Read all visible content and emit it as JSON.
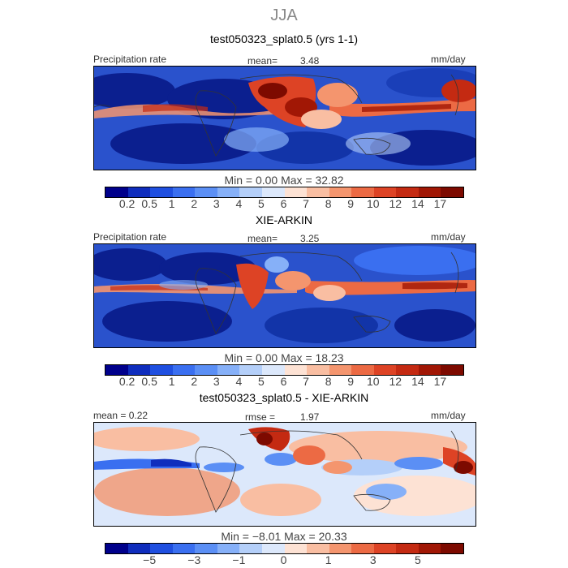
{
  "season": "JJA",
  "panels": [
    {
      "title": "test050323_splat0.5 (yrs 1-1)",
      "left_label": "Precipitation rate",
      "mid_label": "mean=",
      "mid_value": "3.48",
      "right_label": "mm/day",
      "stats": "Min =    0.00 Max =  32.82"
    },
    {
      "title": "XIE-ARKIN",
      "left_label": "Precipitation rate",
      "mid_label": "mean=",
      "mid_value": "3.25",
      "right_label": "mm/day",
      "stats": "Min =    0.00 Max =  18.23"
    },
    {
      "title": "test050323_splat0.5 - XIE-ARKIN",
      "left_label": "mean =   0.22",
      "mid_label": "rmse =",
      "mid_value": "1.97",
      "right_label": "mm/day",
      "stats": "Min =  −8.01 Max =  20.33"
    }
  ],
  "colorbar_precip": {
    "colors": [
      "#00008b",
      "#0f2dbd",
      "#1f4fe0",
      "#3a6ff0",
      "#5b8ff5",
      "#86b0f8",
      "#b4cff9",
      "#dce8fb",
      "#fde2d4",
      "#f9bea2",
      "#f4956e",
      "#ec6a44",
      "#dd4325",
      "#c42a12",
      "#a11705",
      "#7d0a00"
    ],
    "ticks": [
      {
        "label": "0.2",
        "pos": 1
      },
      {
        "label": "0.5",
        "pos": 2
      },
      {
        "label": "1",
        "pos": 3
      },
      {
        "label": "2",
        "pos": 4
      },
      {
        "label": "3",
        "pos": 5
      },
      {
        "label": "4",
        "pos": 6
      },
      {
        "label": "5",
        "pos": 7
      },
      {
        "label": "6",
        "pos": 8
      },
      {
        "label": "7",
        "pos": 9
      },
      {
        "label": "8",
        "pos": 10
      },
      {
        "label": "9",
        "pos": 11
      },
      {
        "label": "10",
        "pos": 12
      },
      {
        "label": "12",
        "pos": 13
      },
      {
        "label": "14",
        "pos": 14
      },
      {
        "label": "17",
        "pos": 15
      }
    ]
  },
  "colorbar_diff": {
    "colors": [
      "#00008b",
      "#0f2dbd",
      "#1f4fe0",
      "#3a6ff0",
      "#5b8ff5",
      "#86b0f8",
      "#b4cff9",
      "#dce8fb",
      "#fde2d4",
      "#f9bea2",
      "#f4956e",
      "#ec6a44",
      "#dd4325",
      "#c42a12",
      "#a11705",
      "#7d0a00"
    ],
    "ticks": [
      {
        "label": "−5",
        "pos": 2
      },
      {
        "label": "−3",
        "pos": 4
      },
      {
        "label": "−1",
        "pos": 6
      },
      {
        "label": "0",
        "pos": 8
      },
      {
        "label": "1",
        "pos": 10
      },
      {
        "label": "3",
        "pos": 12
      },
      {
        "label": "5",
        "pos": 14
      }
    ]
  }
}
